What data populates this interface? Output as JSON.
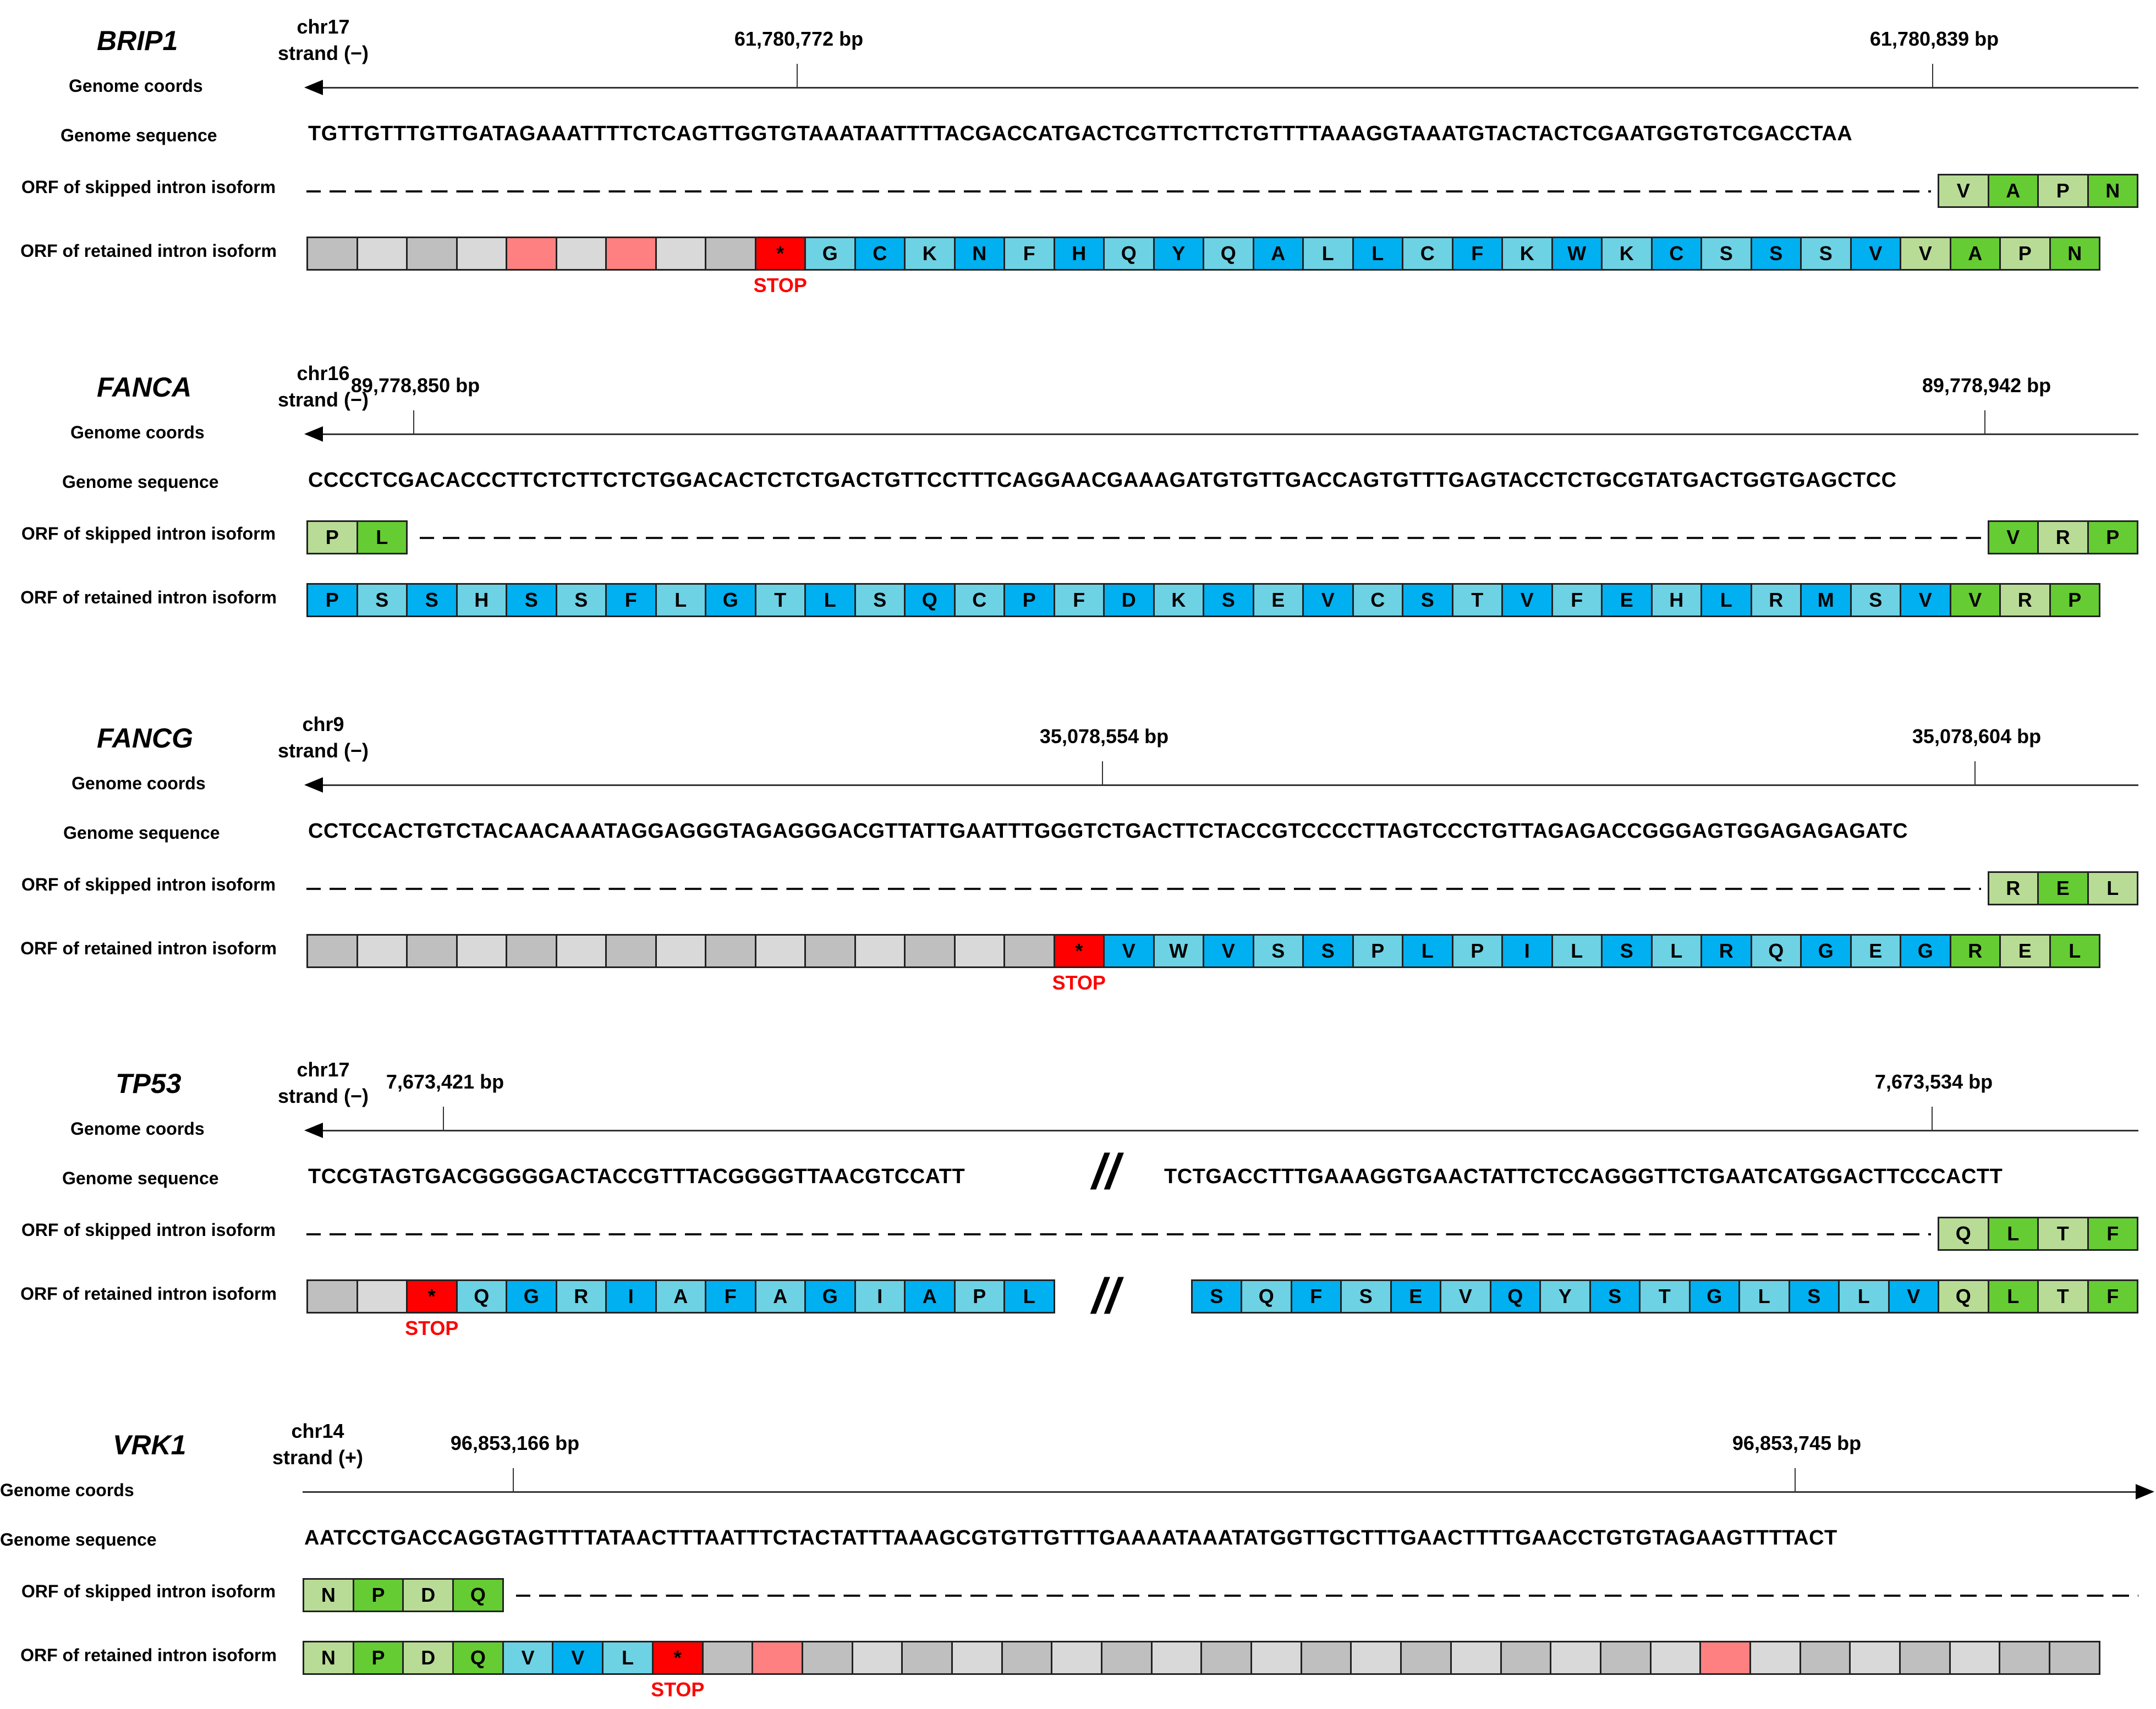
{
  "row_labels": {
    "genome_coords": "Genome coords",
    "genome_sequence": "Genome sequence",
    "skipped": "ORF of skipped intron isoform",
    "retained": "ORF of retained intron isoform"
  },
  "stop_label": "STOP",
  "stop_symbol": "*",
  "break_symbol": "//",
  "colors": {
    "blue_dark": "#00B0F0",
    "blue_light": "#6DD2E4",
    "green_dark": "#66CC33",
    "green_light": "#B8DC96",
    "gray_dark": "#BFBFBF",
    "gray_light": "#D9D9D9",
    "pink": "#FF8080",
    "red": "#FF0000"
  },
  "panels": [
    {
      "gene": "BRIP1",
      "chrom": "chr17",
      "strand": "strand (−)",
      "direction": "left",
      "coord_left": "61,780,772 bp",
      "coord_right": "61,780,839 bp",
      "sequence": [
        "TGTTGTTTGTTGATAGAAATTTTCTCAGTTGGTGTAAATAATTTTACGACCATGACTCGTTCTTCTGTTTTAAAGGTAAATGTACTACTCGAATGGTGTCGACCTAA"
      ],
      "skipped": {
        "left": [],
        "right": [
          "V",
          "A",
          "P",
          "N"
        ]
      },
      "retained": [
        [
          "",
          "gd"
        ],
        [
          "",
          "gl"
        ],
        [
          "",
          "gd"
        ],
        [
          "",
          "gl"
        ],
        [
          "",
          "pk"
        ],
        [
          "",
          "gl"
        ],
        [
          "",
          "pk"
        ],
        [
          "",
          "gl"
        ],
        [
          "",
          "gd"
        ],
        [
          "*",
          "rd"
        ],
        [
          "G",
          "bl"
        ],
        [
          "C",
          "bd"
        ],
        [
          "K",
          "bl"
        ],
        [
          "N",
          "bd"
        ],
        [
          "F",
          "bl"
        ],
        [
          "H",
          "bd"
        ],
        [
          "Q",
          "bl"
        ],
        [
          "Y",
          "bd"
        ],
        [
          "Q",
          "bl"
        ],
        [
          "A",
          "bd"
        ],
        [
          "L",
          "bl"
        ],
        [
          "L",
          "bd"
        ],
        [
          "C",
          "bl"
        ],
        [
          "F",
          "bd"
        ],
        [
          "K",
          "bl"
        ],
        [
          "W",
          "bd"
        ],
        [
          "K",
          "bl"
        ],
        [
          "C",
          "bd"
        ],
        [
          "S",
          "bl"
        ],
        [
          "S",
          "bd"
        ],
        [
          "S",
          "bl"
        ],
        [
          "V",
          "bd"
        ],
        [
          "V",
          "gnl"
        ],
        [
          "A",
          "gnd"
        ],
        [
          "P",
          "gnl"
        ],
        [
          "N",
          "gnd"
        ]
      ]
    },
    {
      "gene": "FANCA",
      "chrom": "chr16",
      "strand": "strand (−)",
      "direction": "left",
      "coord_left": "89,778,850 bp",
      "coord_right": "89,778,942 bp",
      "sequence": [
        "CCCCTCGACACCCTTCTCTTCTCTGGACACTCTCTGACTGTTCCTTTCAGGAACGAAAGATGTGTTGACCAGTGTTTGAGTACCTCTGCGTATGACTGGTGAGCTCC"
      ],
      "skipped": {
        "left": [
          "P",
          "L"
        ],
        "right": [
          "V",
          "R",
          "P"
        ]
      },
      "retained": [
        [
          "P",
          "bd"
        ],
        [
          "S",
          "bl"
        ],
        [
          "S",
          "bd"
        ],
        [
          "H",
          "bl"
        ],
        [
          "S",
          "bd"
        ],
        [
          "S",
          "bl"
        ],
        [
          "F",
          "bd"
        ],
        [
          "L",
          "bl"
        ],
        [
          "G",
          "bd"
        ],
        [
          "T",
          "bl"
        ],
        [
          "L",
          "bd"
        ],
        [
          "S",
          "bl"
        ],
        [
          "Q",
          "bd"
        ],
        [
          "C",
          "bl"
        ],
        [
          "P",
          "bd"
        ],
        [
          "F",
          "bl"
        ],
        [
          "D",
          "bd"
        ],
        [
          "K",
          "bl"
        ],
        [
          "S",
          "bd"
        ],
        [
          "E",
          "bl"
        ],
        [
          "V",
          "bd"
        ],
        [
          "C",
          "bl"
        ],
        [
          "S",
          "bd"
        ],
        [
          "T",
          "bl"
        ],
        [
          "V",
          "bd"
        ],
        [
          "F",
          "bl"
        ],
        [
          "E",
          "bd"
        ],
        [
          "H",
          "bl"
        ],
        [
          "L",
          "bd"
        ],
        [
          "R",
          "bl"
        ],
        [
          "M",
          "bd"
        ],
        [
          "S",
          "bl"
        ],
        [
          "V",
          "bd"
        ],
        [
          "V",
          "gnd"
        ],
        [
          "R",
          "gnl"
        ],
        [
          "P",
          "gnd"
        ]
      ]
    },
    {
      "gene": "FANCG",
      "chrom": "chr9",
      "strand": "strand (−)",
      "direction": "left",
      "coord_left": "35,078,554 bp",
      "coord_right": "35,078,604 bp",
      "sequence": [
        "CCTCCACTGTCTACAACAAATAGGAGGGTAGAGGGACGTTATTGAATTTGGGTCTGACTTCTACCGTCCCCTTAGTCCCTGTTAGAGACCGGGAGTGGAGAGAGATC"
      ],
      "skipped": {
        "left": [],
        "right": [
          "R",
          "E",
          "L"
        ]
      },
      "retained": [
        [
          "",
          "gd"
        ],
        [
          "",
          "gl"
        ],
        [
          "",
          "gd"
        ],
        [
          "",
          "gl"
        ],
        [
          "",
          "gd"
        ],
        [
          "",
          "gl"
        ],
        [
          "",
          "gd"
        ],
        [
          "",
          "gl"
        ],
        [
          "",
          "gd"
        ],
        [
          "",
          "gl"
        ],
        [
          "",
          "gd"
        ],
        [
          "",
          "gl"
        ],
        [
          "",
          "gd"
        ],
        [
          "",
          "gl"
        ],
        [
          "",
          "gd"
        ],
        [
          "*",
          "rd"
        ],
        [
          "V",
          "bd"
        ],
        [
          "W",
          "bl"
        ],
        [
          "V",
          "bd"
        ],
        [
          "S",
          "bl"
        ],
        [
          "S",
          "bd"
        ],
        [
          "P",
          "bl"
        ],
        [
          "L",
          "bd"
        ],
        [
          "P",
          "bl"
        ],
        [
          "I",
          "bd"
        ],
        [
          "L",
          "bl"
        ],
        [
          "S",
          "bd"
        ],
        [
          "L",
          "bl"
        ],
        [
          "R",
          "bd"
        ],
        [
          "Q",
          "bl"
        ],
        [
          "G",
          "bd"
        ],
        [
          "E",
          "bl"
        ],
        [
          "G",
          "bd"
        ],
        [
          "R",
          "gnd"
        ],
        [
          "E",
          "gnl"
        ],
        [
          "L",
          "gnd"
        ]
      ]
    },
    {
      "gene": "TP53",
      "chrom": "chr17",
      "strand": "strand (−)",
      "direction": "left",
      "coord_left": "7,673,421 bp",
      "coord_right": "7,673,534 bp",
      "sequence": [
        "TCCGTAGTGACGGGGGACTACCGTTTACGGGGTTAACGTCCATT",
        "TCTGACCTTTGAAAGGTGAACTATTCTCCAGGGTTCTGAATCATGGACTTCCCACTT"
      ],
      "skipped": {
        "left": [],
        "right": [
          "Q",
          "L",
          "T",
          "F"
        ]
      },
      "retained": [
        [
          "",
          "gd"
        ],
        [
          "",
          "gl"
        ],
        [
          "*",
          "rd"
        ],
        [
          "Q",
          "bl"
        ],
        [
          "G",
          "bd"
        ],
        [
          "R",
          "bl"
        ],
        [
          "I",
          "bd"
        ],
        [
          "A",
          "bl"
        ],
        [
          "F",
          "bd"
        ],
        [
          "A",
          "bl"
        ],
        [
          "G",
          "bd"
        ],
        [
          "I",
          "bl"
        ],
        [
          "A",
          "bd"
        ],
        [
          "P",
          "bl"
        ],
        [
          "L",
          "bd"
        ]
      ],
      "retained_right": [
        [
          "S",
          "bd"
        ],
        [
          "Q",
          "bl"
        ],
        [
          "F",
          "bd"
        ],
        [
          "S",
          "bl"
        ],
        [
          "E",
          "bd"
        ],
        [
          "V",
          "bl"
        ],
        [
          "Q",
          "bd"
        ],
        [
          "Y",
          "bl"
        ],
        [
          "S",
          "bd"
        ],
        [
          "T",
          "bl"
        ],
        [
          "G",
          "bd"
        ],
        [
          "L",
          "bl"
        ],
        [
          "S",
          "bd"
        ],
        [
          "L",
          "bl"
        ],
        [
          "V",
          "bd"
        ],
        [
          "Q",
          "gnl"
        ],
        [
          "L",
          "gnd"
        ],
        [
          "T",
          "gnl"
        ],
        [
          "F",
          "gnd"
        ]
      ]
    },
    {
      "gene": "VRK1",
      "chrom": "chr14",
      "strand": "strand (+)",
      "direction": "right",
      "coord_left": "96,853,166 bp",
      "coord_right": "96,853,745 bp",
      "sequence": [
        "AATCCTGACCAGGTAGTTTTATAACTTTAATTTCTACTATTTAAAGCGTGTTGTTTGAAAATAAATATGGTTGCTTTGAACTTTTGAACCTGTGTAGAAGTTTTACT"
      ],
      "skipped": {
        "left": [
          "N",
          "P",
          "D",
          "Q"
        ],
        "right": []
      },
      "retained": [
        [
          "N",
          "gnl"
        ],
        [
          "P",
          "gnd"
        ],
        [
          "D",
          "gnl"
        ],
        [
          "Q",
          "gnd"
        ],
        [
          "V",
          "bl"
        ],
        [
          "V",
          "bd"
        ],
        [
          "L",
          "bl"
        ],
        [
          "*",
          "rd"
        ],
        [
          "",
          "gd"
        ],
        [
          "",
          "pk"
        ],
        [
          "",
          "gd"
        ],
        [
          "",
          "gl"
        ],
        [
          "",
          "gd"
        ],
        [
          "",
          "gl"
        ],
        [
          "",
          "gd"
        ],
        [
          "",
          "gl"
        ],
        [
          "",
          "gd"
        ],
        [
          "",
          "gl"
        ],
        [
          "",
          "gd"
        ],
        [
          "",
          "gl"
        ],
        [
          "",
          "gd"
        ],
        [
          "",
          "gl"
        ],
        [
          "",
          "gd"
        ],
        [
          "",
          "gl"
        ],
        [
          "",
          "gd"
        ],
        [
          "",
          "gl"
        ],
        [
          "",
          "gd"
        ],
        [
          "",
          "gl"
        ],
        [
          "",
          "pk"
        ],
        [
          "",
          "gl"
        ],
        [
          "",
          "gd"
        ],
        [
          "",
          "gl"
        ],
        [
          "",
          "gd"
        ],
        [
          "",
          "gl"
        ],
        [
          "",
          "gd"
        ],
        [
          "",
          "gd"
        ]
      ]
    }
  ]
}
